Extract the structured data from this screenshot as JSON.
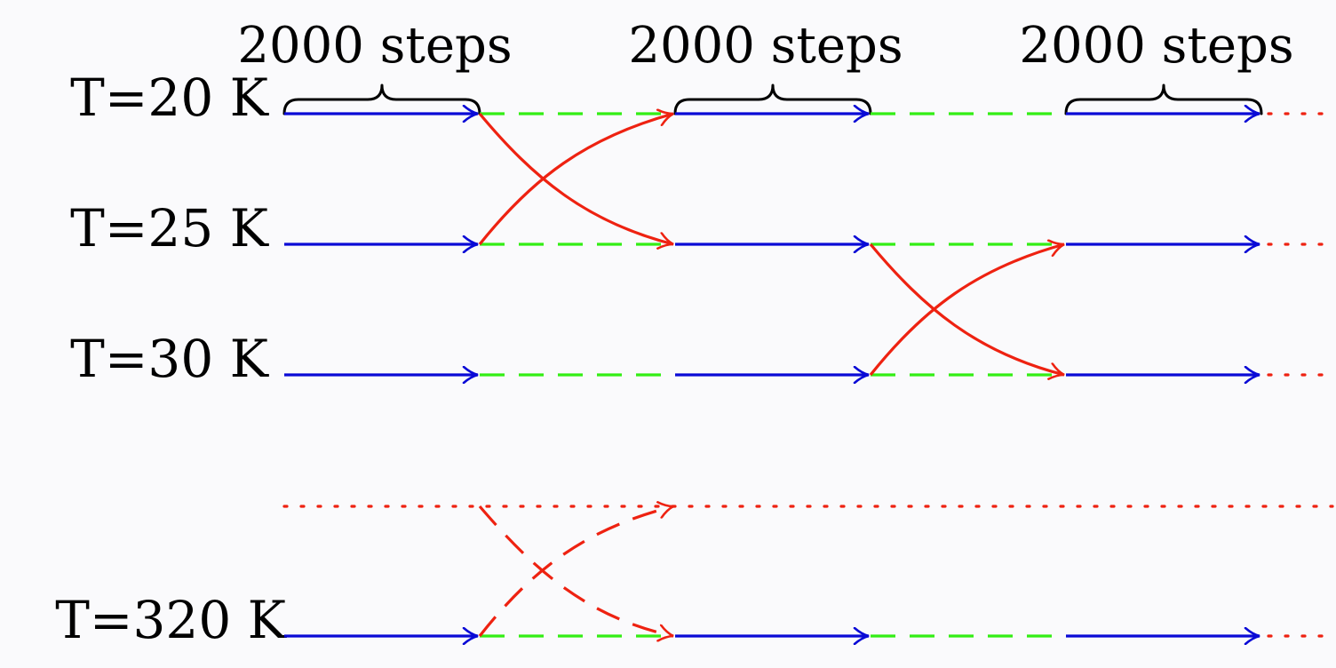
{
  "temperatures": [
    {
      "label": "T=20 K"
    },
    {
      "label": "T=25 K"
    },
    {
      "label": "T=30 K"
    },
    {
      "label": "T=320 K"
    }
  ],
  "step_labels": [
    "2000 steps",
    "2000 steps",
    "2000 steps"
  ],
  "colors": {
    "run": "#0a0ad6",
    "exchange_wait": "#33ee14",
    "swap": "#ee2211",
    "brace": "#000000",
    "text": "#000000",
    "background": "#fafafc"
  }
}
